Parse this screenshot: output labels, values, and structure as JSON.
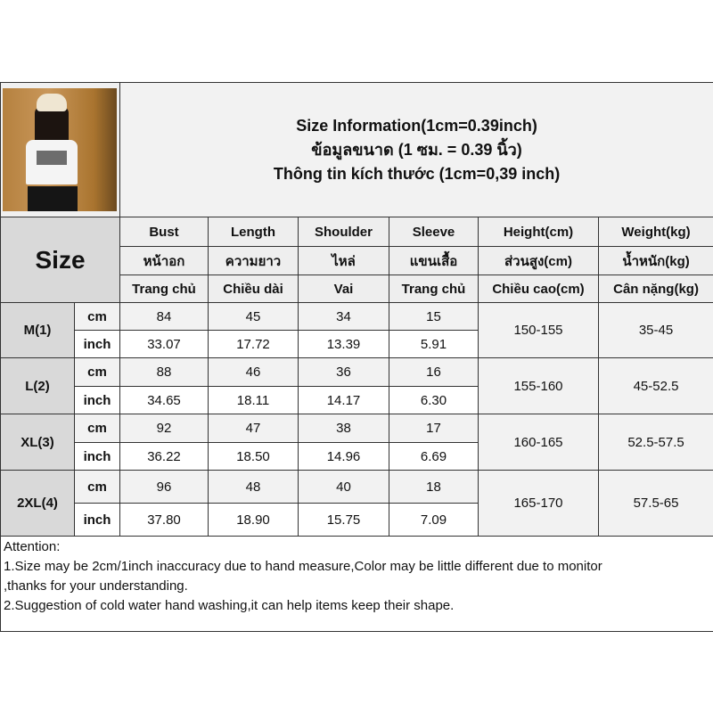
{
  "title_lines": [
    "Size Information(1cm=0.39inch)",
    "ข้อมูลขนาด (1 ซม. = 0.39 นิ้ว)",
    "Thông tin kích thước (1cm=0,39 inch)"
  ],
  "size_label": "Size",
  "headers": [
    [
      "Bust",
      "Length",
      "Shoulder",
      "Sleeve",
      "Height(cm)",
      "Weight(kg)"
    ],
    [
      "หน้าอก",
      "ความยาว",
      "ไหล่",
      "แขนเสื้อ",
      "ส่วนสูง(cm)",
      "น้ำหนัก(kg)"
    ],
    [
      "Trang chủ",
      "Chiều dài",
      "Vai",
      "Trang chủ",
      "Chiều cao(cm)",
      "Cân nặng(kg)"
    ]
  ],
  "units": {
    "cm": "cm",
    "inch": "inch"
  },
  "sizes": [
    {
      "name": "M(1)",
      "cm": [
        "84",
        "45",
        "34",
        "15"
      ],
      "inch": [
        "33.07",
        "17.72",
        "13.39",
        "5.91"
      ],
      "height": "150-155",
      "weight": "35-45"
    },
    {
      "name": "L(2)",
      "cm": [
        "88",
        "46",
        "36",
        "16"
      ],
      "inch": [
        "34.65",
        "18.11",
        "14.17",
        "6.30"
      ],
      "height": "155-160",
      "weight": "45-52.5"
    },
    {
      "name": "XL(3)",
      "cm": [
        "92",
        "47",
        "38",
        "17"
      ],
      "inch": [
        "36.22",
        "18.50",
        "14.96",
        "6.69"
      ],
      "height": "160-165",
      "weight": "52.5-57.5"
    },
    {
      "name": "2XL(4)",
      "cm": [
        "96",
        "48",
        "40",
        "18"
      ],
      "inch": [
        "37.80",
        "18.90",
        "15.75",
        "7.09"
      ],
      "height": "165-170",
      "weight": "57.5-65"
    }
  ],
  "attention": [
    "Attention:",
    "1.Size may be 2cm/1inch inaccuracy due to hand measure,Color may be little different due to monitor",
    ",thanks for your understanding.",
    "2.Suggestion of cold water hand washing,it can help items keep their shape."
  ]
}
